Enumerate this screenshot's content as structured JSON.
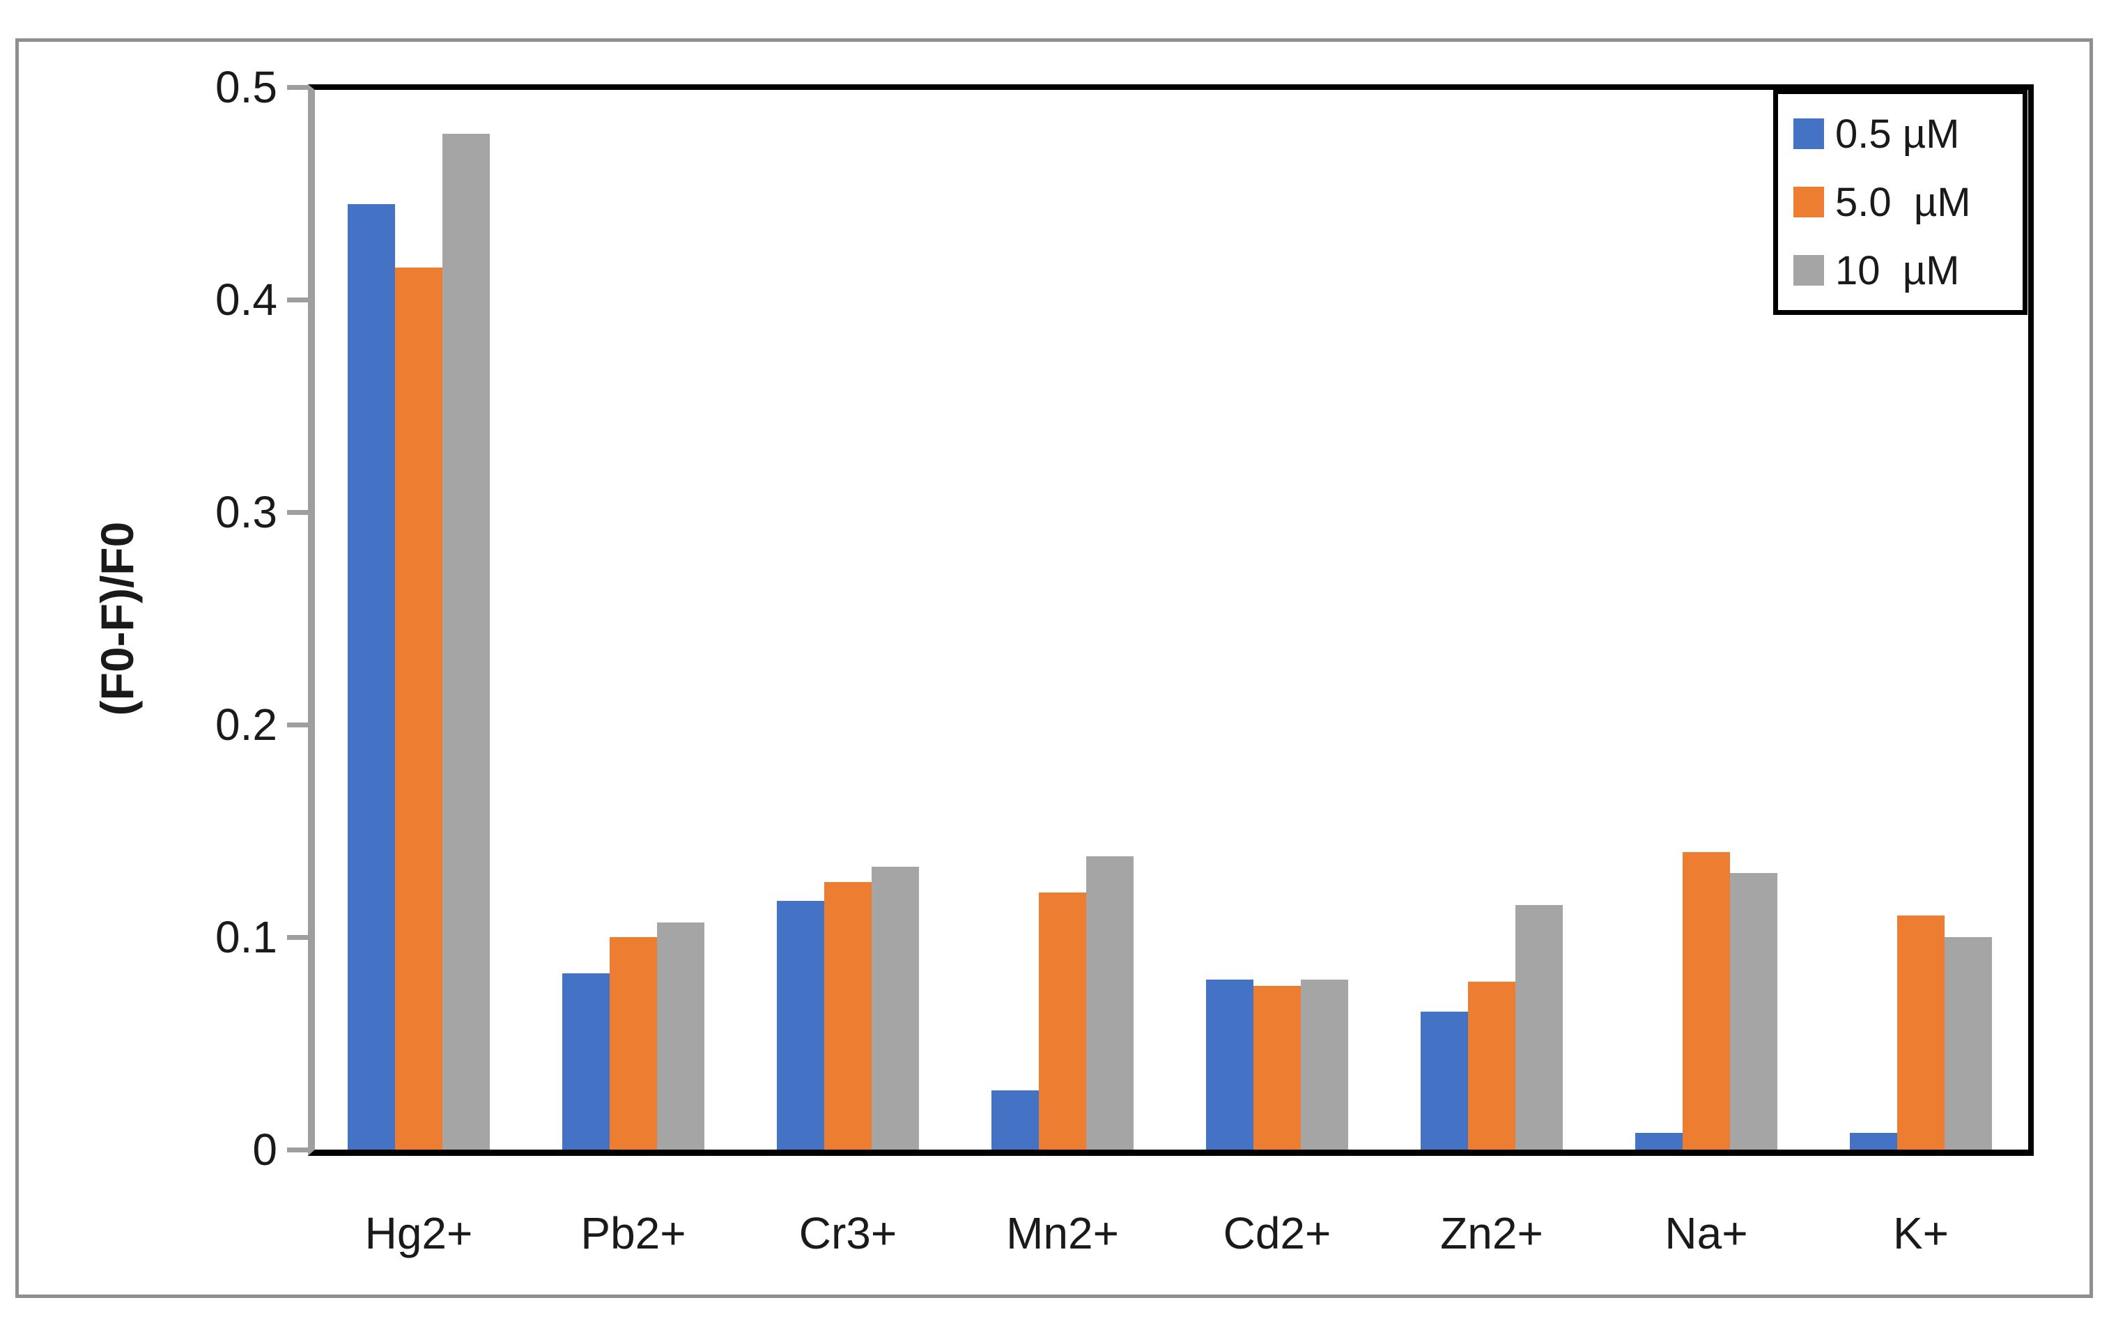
{
  "chart_data": {
    "type": "bar",
    "categories": [
      "Hg2+",
      "Pb2+",
      "Cr3+",
      "Mn2+",
      "Cd2+",
      "Zn2+",
      "Na+",
      "K+"
    ],
    "series": [
      {
        "name": "0.5 µM",
        "color": "#4472C4",
        "values": [
          0.445,
          0.083,
          0.117,
          0.028,
          0.08,
          0.065,
          0.008,
          0.008
        ]
      },
      {
        "name": "5.0  µM",
        "color": "#ED7D31",
        "values": [
          0.415,
          0.1,
          0.126,
          0.121,
          0.077,
          0.079,
          0.14,
          0.11
        ]
      },
      {
        "name": "10  µM",
        "color": "#A5A5A5",
        "values": [
          0.478,
          0.107,
          0.133,
          0.138,
          0.08,
          0.115,
          0.13,
          0.1
        ]
      }
    ],
    "title": "",
    "xlabel": "",
    "ylabel": "(F0-F)/F0",
    "ylim": [
      0,
      0.5
    ],
    "yticks": [
      0,
      0.1,
      0.2,
      0.3,
      0.4,
      0.5
    ],
    "ytick_labels": [
      "0",
      "0.1",
      "0.2",
      "0.3",
      "0.4",
      "0.5"
    ],
    "legend_position": "top-right",
    "grid": false
  }
}
